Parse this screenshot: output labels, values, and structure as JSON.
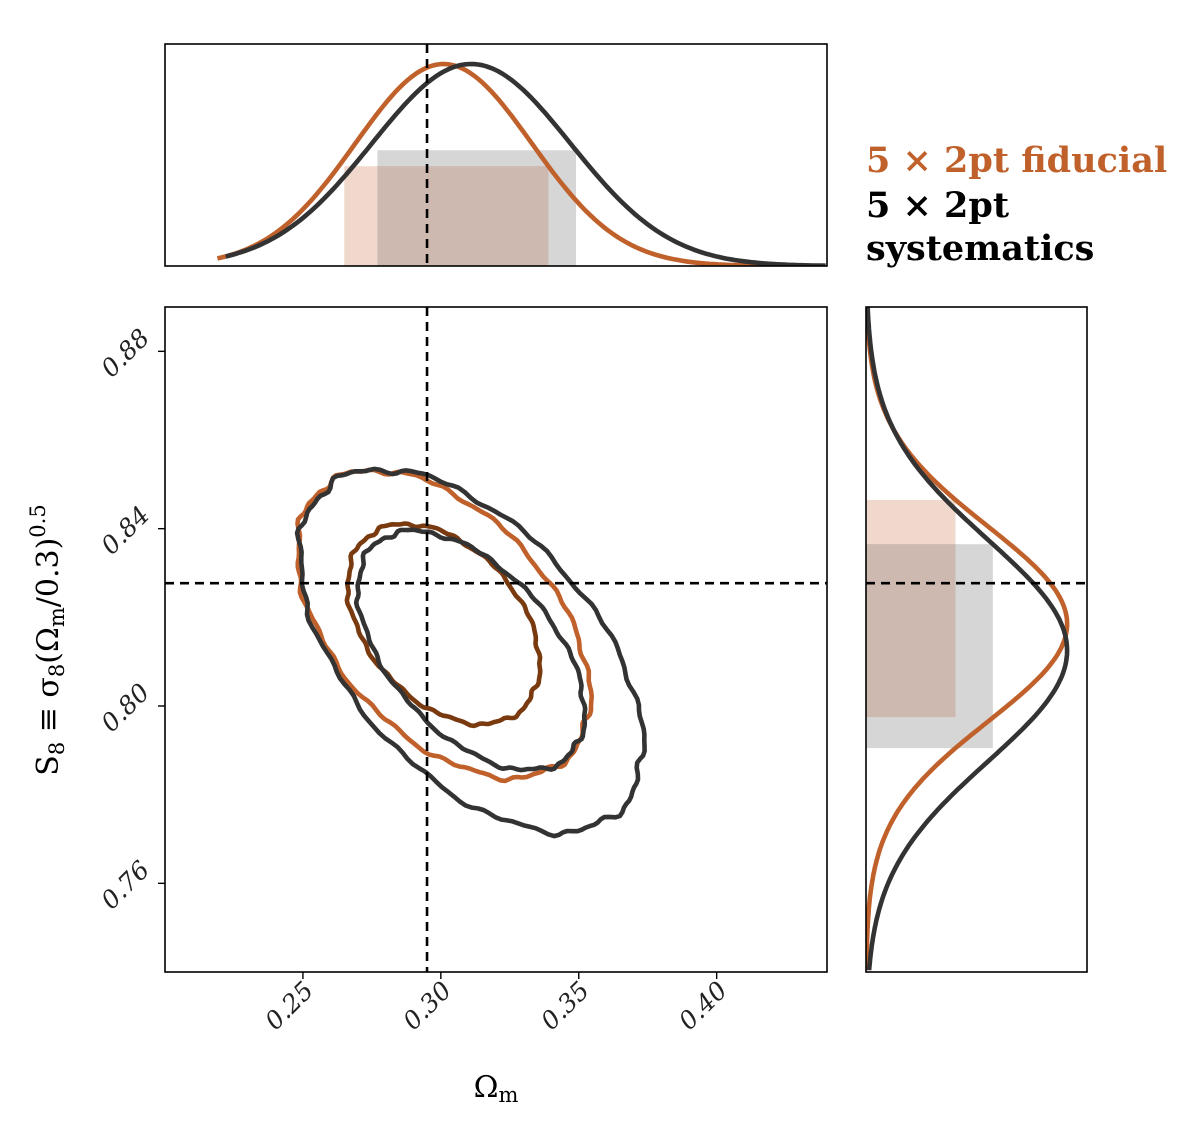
{
  "chart_data": {
    "type": "corner-plot",
    "legend": [
      {
        "label": "5 × 2pt fiducial",
        "color": "#c0612b"
      },
      {
        "label": "5 × 2pt",
        "color": "#000000"
      },
      {
        "label": "systematics",
        "color": "#000000"
      }
    ],
    "colors": {
      "fiducial": "#c0612b",
      "fiducial_inner": "#7a3a10",
      "systematics": "#333333",
      "fiducial_band": "#f0d9cc",
      "systematics_band": "#d6d6d6",
      "overlap_band": "#cdb9b0"
    },
    "x_axis": {
      "label": "Ωm",
      "range": [
        0.2,
        0.44
      ],
      "ticks": [
        0.25,
        0.3,
        0.35,
        0.4
      ],
      "tick_labels": [
        "0.25",
        "0.30",
        "0.35",
        "0.40"
      ],
      "truth": 0.295
    },
    "y_axis": {
      "label": "S8 ≡ σ8(Ωm/0.3)^0.5",
      "range": [
        0.74,
        0.89
      ],
      "ticks": [
        0.76,
        0.8,
        0.84,
        0.88
      ],
      "tick_labels": [
        "0.76",
        "0.80",
        "0.84",
        "0.88"
      ],
      "truth": 0.8277
    },
    "marginal_omegam": {
      "fiducial": {
        "mean": 0.301,
        "sigma": 0.032,
        "band": [
          0.265,
          0.339
        ]
      },
      "systematics": {
        "mean": 0.311,
        "sigma": 0.036,
        "band": [
          0.277,
          0.349
        ]
      }
    },
    "marginal_s8": {
      "fiducial": {
        "mean": 0.8185,
        "sigma": 0.022,
        "band": [
          0.7975,
          0.8465
        ]
      },
      "systematics": {
        "mean": 0.8125,
        "sigma": 0.025,
        "band": [
          0.7905,
          0.8365
        ]
      }
    },
    "contours_2d": {
      "fiducial": {
        "center": [
          0.301,
          0.8185
        ],
        "levels": [
          {
            "sigma": 1,
            "semi_axes": [
              0.042,
              0.03
            ],
            "angle_deg": -48
          },
          {
            "sigma": 2,
            "semi_axes": [
              0.066,
              0.043
            ],
            "angle_deg": -48
          }
        ]
      },
      "systematics": {
        "center": [
          0.311,
          0.8125
        ],
        "levels": [
          {
            "sigma": 1,
            "semi_axes": [
              0.052,
              0.032
            ],
            "angle_deg": -48
          },
          {
            "sigma": 2,
            "semi_axes": [
              0.079,
              0.048
            ],
            "angle_deg": -48
          }
        ]
      }
    }
  }
}
